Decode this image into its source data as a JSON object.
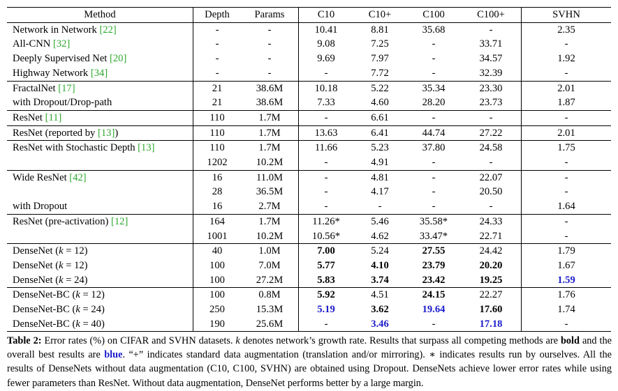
{
  "table": {
    "headers": [
      "Method",
      "Depth",
      "Params",
      "C10",
      "C10+",
      "C100",
      "C100+",
      "SVHN"
    ],
    "groups": [
      [
        {
          "name": "Network in Network ",
          "cite": "[22]",
          "cells": [
            "-",
            "-",
            "10.41",
            "8.81",
            "35.68",
            "-",
            "2.35"
          ]
        },
        {
          "name": "All-CNN ",
          "cite": "[32]",
          "cells": [
            "-",
            "-",
            "9.08",
            "7.25",
            "-",
            "33.71",
            "-"
          ]
        },
        {
          "name": "Deeply Supervised Net ",
          "cite": "[20]",
          "cells": [
            "-",
            "-",
            "9.69",
            "7.97",
            "-",
            "34.57",
            "1.92"
          ]
        },
        {
          "name": "Highway Network ",
          "cite": "[34]",
          "cells": [
            "-",
            "-",
            "-",
            "7.72",
            "-",
            "32.39",
            "-"
          ]
        }
      ],
      [
        {
          "name": "FractalNet ",
          "cite": "[17]",
          "cells": [
            "21",
            "38.6M",
            "10.18",
            "5.22",
            "35.34",
            "23.30",
            "2.01"
          ]
        },
        {
          "name": "with Dropout/Drop-path",
          "cite": "",
          "cells": [
            "21",
            "38.6M",
            "7.33",
            "4.60",
            "28.20",
            "23.73",
            "1.87"
          ]
        }
      ],
      [
        {
          "name": "ResNet ",
          "cite": "[11]",
          "cells": [
            "110",
            "1.7M",
            "-",
            "6.61",
            "-",
            "-",
            "-"
          ]
        }
      ],
      [
        {
          "name": "ResNet (reported by ",
          "cite": "[13]",
          "suffix": ")",
          "cells": [
            "110",
            "1.7M",
            "13.63",
            "6.41",
            "44.74",
            "27.22",
            "2.01"
          ]
        }
      ],
      [
        {
          "name": "ResNet with Stochastic Depth ",
          "cite": "[13]",
          "cells": [
            "110",
            "1.7M",
            "11.66",
            "5.23",
            "37.80",
            "24.58",
            "1.75"
          ]
        },
        {
          "name": "",
          "cite": "",
          "cells": [
            "1202",
            "10.2M",
            "-",
            "4.91",
            "-",
            "-",
            "-"
          ]
        }
      ],
      [
        {
          "name": "Wide ResNet ",
          "cite": "[42]",
          "cells": [
            "16",
            "11.0M",
            "-",
            "4.81",
            "-",
            "22.07",
            "-"
          ]
        },
        {
          "name": "",
          "cite": "",
          "cells": [
            "28",
            "36.5M",
            "-",
            "4.17",
            "-",
            "20.50",
            "-"
          ]
        },
        {
          "name": "with Dropout",
          "cite": "",
          "cells": [
            "16",
            "2.7M",
            "-",
            "-",
            "-",
            "-",
            "1.64"
          ]
        }
      ],
      [
        {
          "name": "ResNet (pre-activation) ",
          "cite": "[12]",
          "cells": [
            "164",
            "1.7M",
            "11.26*",
            "5.46",
            "35.58*",
            "24.33",
            "-"
          ]
        },
        {
          "name": "",
          "cite": "",
          "cells": [
            "1001",
            "10.2M",
            "10.56*",
            "4.62",
            "33.47*",
            "22.71",
            "-"
          ]
        }
      ],
      [
        {
          "name": "DenseNet (",
          "k": "k",
          " keq": " = 12)",
          "cells": [
            "40",
            "1.0M",
            "7.00",
            "5.24",
            "27.55",
            "24.42",
            "1.79"
          ],
          "bold": [
            2,
            4
          ],
          "blue": []
        },
        {
          "name": "DenseNet (",
          "k": "k",
          "keq": " = 12)",
          "cells": [
            "100",
            "7.0M",
            "5.77",
            "4.10",
            "23.79",
            "20.20",
            "1.67"
          ],
          "bold": [
            2,
            3,
            4,
            5
          ],
          "blue": []
        },
        {
          "name": "DenseNet (",
          "k": "k",
          "keq": " = 24)",
          "cells": [
            "100",
            "27.2M",
            "5.83",
            "3.74",
            "23.42",
            "19.25",
            "1.59"
          ],
          "bold": [
            2,
            3,
            4,
            5,
            6
          ],
          "blue": [
            6
          ]
        }
      ],
      [
        {
          "name": "DenseNet-BC (",
          "k": "k",
          "keq": " = 12)",
          "cells": [
            "100",
            "0.8M",
            "5.92",
            "4.51",
            "24.15",
            "22.27",
            "1.76"
          ],
          "bold": [
            2,
            4
          ],
          "blue": []
        },
        {
          "name": "DenseNet-BC (",
          "k": "k",
          "keq": " = 24)",
          "cells": [
            "250",
            "15.3M",
            "5.19",
            "3.62",
            "19.64",
            "17.60",
            "1.74"
          ],
          "bold": [
            2,
            3,
            4,
            5
          ],
          "blue": [
            2,
            4
          ]
        },
        {
          "name": "DenseNet-BC (",
          "k": "k",
          "keq": " = 40)",
          "cells": [
            "190",
            "25.6M",
            "-",
            "3.46",
            "-",
            "17.18",
            "-"
          ],
          "bold": [
            3,
            5
          ],
          "blue": [
            3,
            5
          ]
        }
      ]
    ]
  },
  "caption": {
    "label": "Table 2:",
    "text1": " Error rates (%) on CIFAR and SVHN datasets. ",
    "k": "k",
    "text2": " denotes network’s growth rate. Results that surpass all competing methods are ",
    "bold_word": "bold",
    "text3": " and the overall best results are ",
    "blue_word": "blue",
    "text4": ". “+” indicates standard data augmentation (translation and/or mirroring). ∗ indicates results run by ourselves. All the results of DenseNets without data augmentation (C10, C100, SVHN) are obtained using Dropout. DenseNets achieve lower error rates while using fewer parameters than ResNet. Without data augmentation, DenseNet performs better by a large margin."
  }
}
